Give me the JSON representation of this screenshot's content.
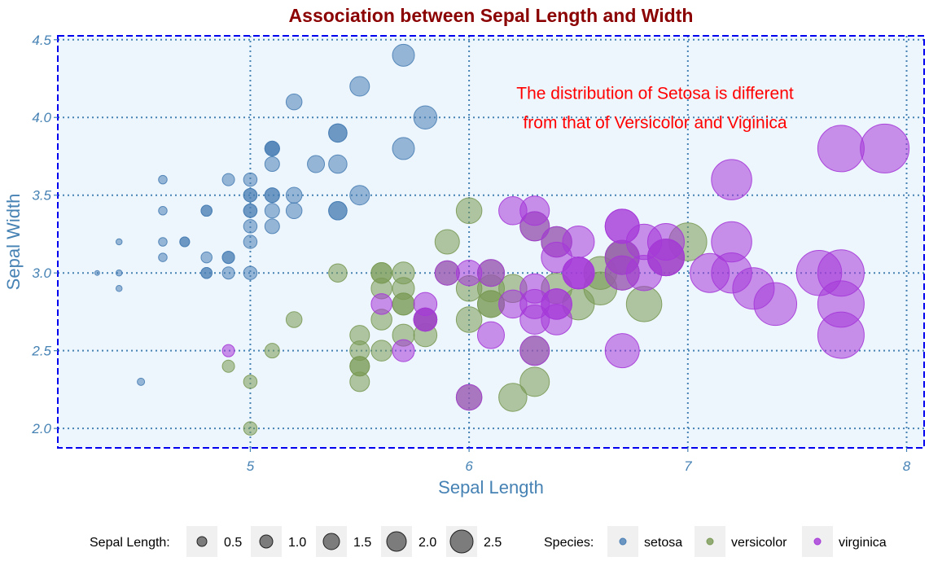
{
  "chart_data": {
    "type": "scatter",
    "title": "Association between Sepal Length and Width",
    "xlabel": "Sepal Length",
    "ylabel": "Sepal Width",
    "xlim": [
      4.3,
      7.9
    ],
    "ylim": [
      2.0,
      4.5
    ],
    "x_ticks": [
      {
        "value": 5,
        "label": "5"
      },
      {
        "value": 6,
        "label": "6"
      },
      {
        "value": 7,
        "label": "7"
      },
      {
        "value": 8,
        "label": "8"
      }
    ],
    "y_ticks": [
      {
        "value": 2.0,
        "label": "2.0"
      },
      {
        "value": 2.5,
        "label": "2.5"
      },
      {
        "value": 3.0,
        "label": "3.0"
      },
      {
        "value": 3.5,
        "label": "3.5"
      },
      {
        "value": 4.0,
        "label": "4.0"
      },
      {
        "value": 4.5,
        "label": "4.5"
      }
    ],
    "grid": true,
    "annotation": {
      "lines": [
        "The distribution of Setosa is different",
        "from that of Versicolor and Viginica"
      ],
      "x": 6.85,
      "y": 4.12
    },
    "size_legend": {
      "title": "Sepal Length:",
      "entries": [
        {
          "value": 0.5,
          "label": "0.5"
        },
        {
          "value": 1.0,
          "label": "1.0"
        },
        {
          "value": 1.5,
          "label": "1.5"
        },
        {
          "value": 2.0,
          "label": "2.0"
        },
        {
          "value": 2.5,
          "label": "2.5"
        }
      ]
    },
    "color_legend": {
      "title": "Species:"
    },
    "series": [
      {
        "name": "setosa",
        "color": "#4a7fb5",
        "points": [
          [
            5.1,
            3.5
          ],
          [
            4.9,
            3.0
          ],
          [
            4.7,
            3.2
          ],
          [
            4.6,
            3.1
          ],
          [
            5.0,
            3.6
          ],
          [
            5.4,
            3.9
          ],
          [
            4.6,
            3.4
          ],
          [
            5.0,
            3.4
          ],
          [
            4.4,
            2.9
          ],
          [
            4.9,
            3.1
          ],
          [
            5.4,
            3.7
          ],
          [
            4.8,
            3.4
          ],
          [
            4.8,
            3.0
          ],
          [
            4.3,
            3.0
          ],
          [
            5.8,
            4.0
          ],
          [
            5.7,
            4.4
          ],
          [
            5.4,
            3.9
          ],
          [
            5.1,
            3.5
          ],
          [
            5.7,
            3.8
          ],
          [
            5.1,
            3.8
          ],
          [
            5.4,
            3.4
          ],
          [
            5.1,
            3.7
          ],
          [
            4.6,
            3.6
          ],
          [
            5.1,
            3.3
          ],
          [
            4.8,
            3.4
          ],
          [
            5.0,
            3.0
          ],
          [
            5.0,
            3.4
          ],
          [
            5.2,
            3.5
          ],
          [
            5.2,
            3.4
          ],
          [
            4.7,
            3.2
          ],
          [
            4.8,
            3.1
          ],
          [
            5.4,
            3.4
          ],
          [
            5.2,
            4.1
          ],
          [
            5.5,
            4.2
          ],
          [
            4.9,
            3.1
          ],
          [
            5.0,
            3.2
          ],
          [
            5.5,
            3.5
          ],
          [
            4.9,
            3.6
          ],
          [
            4.4,
            3.0
          ],
          [
            5.1,
            3.4
          ],
          [
            5.0,
            3.5
          ],
          [
            4.5,
            2.3
          ],
          [
            4.4,
            3.2
          ],
          [
            5.0,
            3.5
          ],
          [
            5.1,
            3.8
          ],
          [
            4.8,
            3.0
          ],
          [
            5.1,
            3.8
          ],
          [
            4.6,
            3.2
          ],
          [
            5.3,
            3.7
          ],
          [
            5.0,
            3.3
          ]
        ]
      },
      {
        "name": "versicolor",
        "color": "#7a9a55",
        "points": [
          [
            7.0,
            3.2
          ],
          [
            6.4,
            3.2
          ],
          [
            6.9,
            3.1
          ],
          [
            5.5,
            2.3
          ],
          [
            6.5,
            2.8
          ],
          [
            5.7,
            2.8
          ],
          [
            6.3,
            3.3
          ],
          [
            4.9,
            2.4
          ],
          [
            6.6,
            2.9
          ],
          [
            5.2,
            2.7
          ],
          [
            5.0,
            2.0
          ],
          [
            5.9,
            3.0
          ],
          [
            6.0,
            2.2
          ],
          [
            6.1,
            2.9
          ],
          [
            5.6,
            2.9
          ],
          [
            6.7,
            3.1
          ],
          [
            5.6,
            3.0
          ],
          [
            5.8,
            2.7
          ],
          [
            6.2,
            2.2
          ],
          [
            5.6,
            2.5
          ],
          [
            5.9,
            3.2
          ],
          [
            6.1,
            2.8
          ],
          [
            6.3,
            2.5
          ],
          [
            6.1,
            2.8
          ],
          [
            6.4,
            2.9
          ],
          [
            6.6,
            3.0
          ],
          [
            6.8,
            2.8
          ],
          [
            6.7,
            3.0
          ],
          [
            6.0,
            2.9
          ],
          [
            5.7,
            2.6
          ],
          [
            5.5,
            2.4
          ],
          [
            5.5,
            2.4
          ],
          [
            5.8,
            2.7
          ],
          [
            6.0,
            2.7
          ],
          [
            5.4,
            3.0
          ],
          [
            6.0,
            3.4
          ],
          [
            6.7,
            3.1
          ],
          [
            6.3,
            2.3
          ],
          [
            5.6,
            3.0
          ],
          [
            5.5,
            2.5
          ],
          [
            5.5,
            2.6
          ],
          [
            6.1,
            3.0
          ],
          [
            5.8,
            2.6
          ],
          [
            5.0,
            2.3
          ],
          [
            5.6,
            2.7
          ],
          [
            5.7,
            3.0
          ],
          [
            5.7,
            2.9
          ],
          [
            6.2,
            2.9
          ],
          [
            5.1,
            2.5
          ],
          [
            5.7,
            2.8
          ]
        ]
      },
      {
        "name": "virginica",
        "color": "#a538d8",
        "points": [
          [
            6.3,
            3.3
          ],
          [
            5.8,
            2.7
          ],
          [
            7.1,
            3.0
          ],
          [
            6.3,
            2.9
          ],
          [
            6.5,
            3.0
          ],
          [
            7.6,
            3.0
          ],
          [
            4.9,
            2.5
          ],
          [
            7.3,
            2.9
          ],
          [
            6.7,
            2.5
          ],
          [
            7.2,
            3.6
          ],
          [
            6.5,
            3.2
          ],
          [
            6.4,
            2.7
          ],
          [
            6.8,
            3.0
          ],
          [
            5.7,
            2.5
          ],
          [
            5.8,
            2.8
          ],
          [
            6.4,
            3.2
          ],
          [
            6.5,
            3.0
          ],
          [
            7.7,
            3.8
          ],
          [
            7.7,
            2.6
          ],
          [
            6.0,
            2.2
          ],
          [
            6.9,
            3.2
          ],
          [
            5.6,
            2.8
          ],
          [
            7.7,
            2.8
          ],
          [
            6.3,
            2.7
          ],
          [
            6.7,
            3.3
          ],
          [
            7.2,
            3.2
          ],
          [
            6.2,
            2.8
          ],
          [
            6.1,
            3.0
          ],
          [
            6.4,
            2.8
          ],
          [
            7.2,
            3.0
          ],
          [
            7.4,
            2.8
          ],
          [
            7.9,
            3.8
          ],
          [
            6.4,
            2.8
          ],
          [
            6.3,
            2.8
          ],
          [
            6.1,
            2.6
          ],
          [
            7.7,
            3.0
          ],
          [
            6.3,
            3.4
          ],
          [
            6.4,
            3.1
          ],
          [
            6.0,
            3.0
          ],
          [
            6.9,
            3.1
          ],
          [
            6.7,
            3.1
          ],
          [
            6.9,
            3.1
          ],
          [
            5.8,
            2.7
          ],
          [
            6.8,
            3.2
          ],
          [
            6.7,
            3.3
          ],
          [
            6.7,
            3.0
          ],
          [
            6.3,
            2.5
          ],
          [
            6.5,
            3.0
          ],
          [
            6.2,
            3.4
          ],
          [
            5.9,
            3.0
          ]
        ]
      }
    ]
  }
}
